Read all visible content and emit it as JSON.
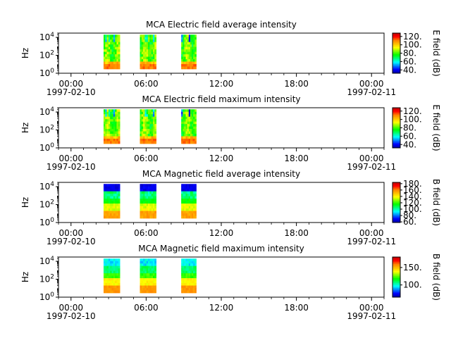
{
  "chart_data": [
    {
      "type": "heatmap",
      "title": "MCA  Electric field average intensity",
      "ylabel": "Hz",
      "yticks": [
        {
          "exp": "0"
        },
        {
          "exp": "2"
        },
        {
          "exp": "4"
        }
      ],
      "ylim": [
        1,
        30000
      ],
      "yscale": "log",
      "xlim_hours": [
        -1,
        25
      ],
      "xticks": [
        {
          "hour": 0,
          "label": "00:00"
        },
        {
          "hour": 6,
          "label": "06:00"
        },
        {
          "hour": 12,
          "label": "12:00"
        },
        {
          "hour": 18,
          "label": "18:00"
        },
        {
          "hour": 24,
          "label": "00:00"
        }
      ],
      "start_date": "1997-02-10",
      "end_date": "1997-02-11",
      "colorbar": {
        "label": "E field (dB)",
        "range": [
          32,
          128
        ],
        "ticks": [
          "120.",
          "100.",
          "80.",
          "60.",
          "40."
        ],
        "tick_values": [
          120,
          100,
          80,
          60,
          40
        ]
      },
      "data_blocks": [
        {
          "start_hour": 2.6,
          "end_hour": 3.9,
          "freq_range": [
            3,
            20000
          ]
        },
        {
          "start_hour": 5.5,
          "end_hour": 6.8,
          "freq_range": [
            3,
            20000
          ]
        },
        {
          "start_hour": 8.8,
          "end_hour": 10.0,
          "freq_range": [
            3,
            20000
          ]
        }
      ],
      "profile": "e-avg"
    },
    {
      "type": "heatmap",
      "title": "MCA  Electric field maximum intensity",
      "ylabel": "Hz",
      "yticks": [
        {
          "exp": "0"
        },
        {
          "exp": "2"
        },
        {
          "exp": "4"
        }
      ],
      "ylim": [
        1,
        30000
      ],
      "yscale": "log",
      "xlim_hours": [
        -1,
        25
      ],
      "xticks": [
        {
          "hour": 0,
          "label": "00:00"
        },
        {
          "hour": 6,
          "label": "06:00"
        },
        {
          "hour": 12,
          "label": "12:00"
        },
        {
          "hour": 18,
          "label": "18:00"
        },
        {
          "hour": 24,
          "label": "00:00"
        }
      ],
      "start_date": "1997-02-10",
      "end_date": "1997-02-11",
      "colorbar": {
        "label": "E field (dB)",
        "range": [
          32,
          128
        ],
        "ticks": [
          "120.",
          "100.",
          "80.",
          "60.",
          "40."
        ],
        "tick_values": [
          120,
          100,
          80,
          60,
          40
        ]
      },
      "data_blocks": [
        {
          "start_hour": 2.6,
          "end_hour": 3.9,
          "freq_range": [
            3,
            20000
          ]
        },
        {
          "start_hour": 5.5,
          "end_hour": 6.8,
          "freq_range": [
            3,
            20000
          ]
        },
        {
          "start_hour": 8.8,
          "end_hour": 10.0,
          "freq_range": [
            3,
            20000
          ]
        }
      ],
      "profile": "e-max"
    },
    {
      "type": "heatmap",
      "title": "MCA  Magnetic field average intensity",
      "ylabel": "Hz",
      "yticks": [
        {
          "exp": "0"
        },
        {
          "exp": "2"
        },
        {
          "exp": "4"
        }
      ],
      "ylim": [
        1,
        30000
      ],
      "yscale": "log",
      "xlim_hours": [
        -1,
        25
      ],
      "xticks": [
        {
          "hour": 0,
          "label": "00:00"
        },
        {
          "hour": 6,
          "label": "06:00"
        },
        {
          "hour": 12,
          "label": "12:00"
        },
        {
          "hour": 18,
          "label": "18:00"
        },
        {
          "hour": 24,
          "label": "00:00"
        }
      ],
      "start_date": "1997-02-10",
      "end_date": "1997-02-11",
      "colorbar": {
        "label": "B field (dB)",
        "range": [
          58,
          184
        ],
        "ticks": [
          "180.",
          "160.",
          "140.",
          "120.",
          "100.",
          "80.",
          "60."
        ],
        "tick_values": [
          180,
          160,
          140,
          120,
          100,
          80,
          60
        ]
      },
      "data_blocks": [
        {
          "start_hour": 2.6,
          "end_hour": 3.9,
          "freq_range": [
            3,
            20000
          ]
        },
        {
          "start_hour": 5.5,
          "end_hour": 6.8,
          "freq_range": [
            3,
            20000
          ]
        },
        {
          "start_hour": 8.8,
          "end_hour": 10.0,
          "freq_range": [
            3,
            20000
          ]
        }
      ],
      "profile": "b-avg"
    },
    {
      "type": "heatmap",
      "title": "MCA  Magnetic field maximum intensity",
      "ylabel": "Hz",
      "yticks": [
        {
          "exp": "0"
        },
        {
          "exp": "2"
        },
        {
          "exp": "4"
        }
      ],
      "ylim": [
        1,
        30000
      ],
      "yscale": "log",
      "xlim_hours": [
        -1,
        25
      ],
      "xticks": [
        {
          "hour": 0,
          "label": "00:00"
        },
        {
          "hour": 6,
          "label": "06:00"
        },
        {
          "hour": 12,
          "label": "12:00"
        },
        {
          "hour": 18,
          "label": "18:00"
        },
        {
          "hour": 24,
          "label": "00:00"
        }
      ],
      "start_date": "1997-02-10",
      "end_date": "1997-02-11",
      "colorbar": {
        "label": "B field (dB)",
        "range": [
          65,
          180
        ],
        "ticks": [
          "150.",
          "100."
        ],
        "tick_values": [
          150,
          100
        ]
      },
      "data_blocks": [
        {
          "start_hour": 2.6,
          "end_hour": 3.9,
          "freq_range": [
            3,
            20000
          ]
        },
        {
          "start_hour": 5.5,
          "end_hour": 6.8,
          "freq_range": [
            3,
            20000
          ]
        },
        {
          "start_hour": 8.8,
          "end_hour": 10.0,
          "freq_range": [
            3,
            20000
          ]
        }
      ],
      "profile": "b-max"
    }
  ],
  "colors": {
    "colormap": [
      "#0000a0",
      "#0000ff",
      "#0080ff",
      "#00ffff",
      "#00ff80",
      "#00ff00",
      "#80ff00",
      "#ffff00",
      "#ffc000",
      "#ff8000",
      "#ff0000",
      "#c00000"
    ]
  }
}
